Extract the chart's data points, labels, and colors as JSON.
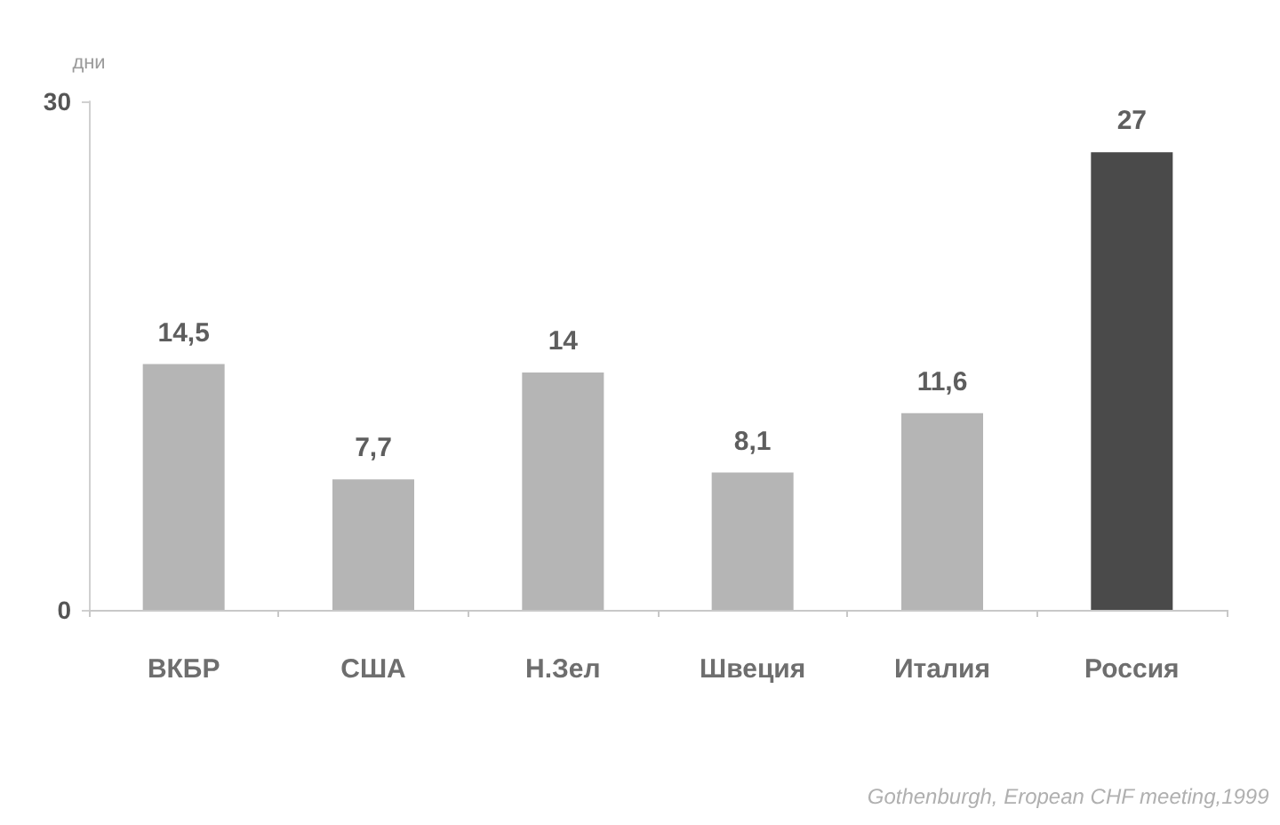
{
  "chart_data": {
    "type": "bar",
    "ylabel": "дни",
    "categories": [
      "ВКБР",
      "США",
      "Н.Зел",
      "Швеция",
      "Италия",
      "Россия"
    ],
    "values": [
      14.5,
      7.7,
      14,
      8.1,
      11.6,
      27
    ],
    "value_labels": [
      "14,5",
      "7,7",
      "14",
      "8,1",
      "11,6",
      "27"
    ],
    "colors": [
      "#b5b5b5",
      "#b5b5b5",
      "#b5b5b5",
      "#b5b5b5",
      "#b5b5b5",
      "#4a4a4a"
    ],
    "ylim": [
      0,
      30
    ],
    "yticks": [
      0,
      30
    ],
    "annotations": [
      "Gothenburgh, Eropean CHF meeting,1999"
    ]
  }
}
